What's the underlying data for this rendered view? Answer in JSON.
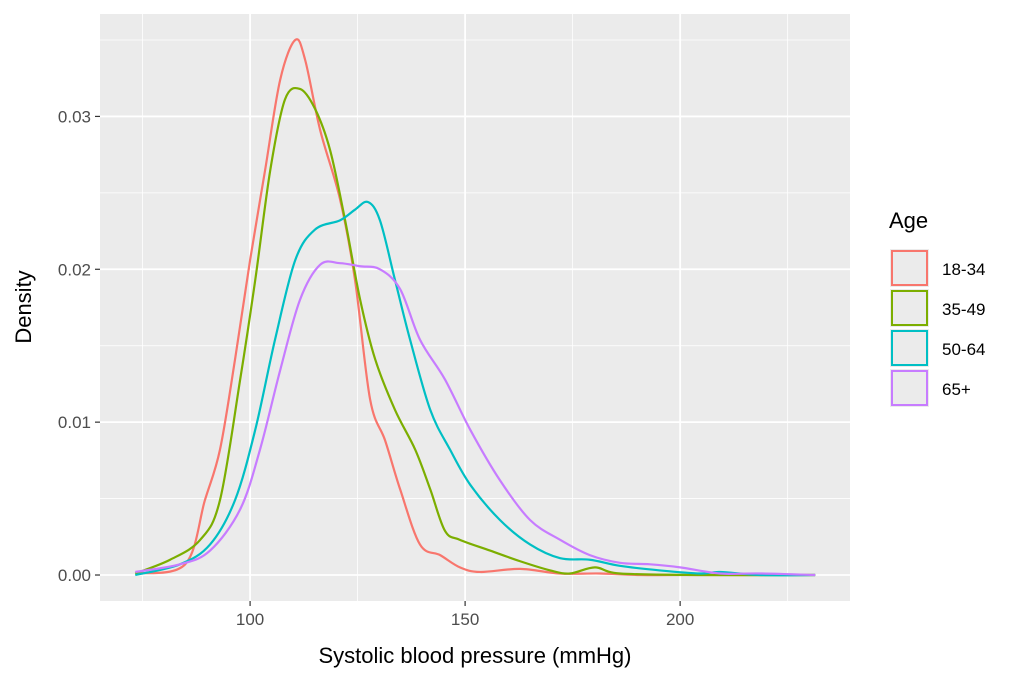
{
  "chart_data": {
    "type": "line",
    "title": "",
    "xlabel": "Systolic blood pressure (mmHg)",
    "ylabel": "Density",
    "xlim": [
      65.1,
      239.5
    ],
    "ylim": [
      -0.0017,
      0.0367
    ],
    "x_ticks": [
      100,
      150,
      200
    ],
    "x_tick_labels": [
      "100",
      "150",
      "200"
    ],
    "y_ticks": [
      0,
      0.01,
      0.02,
      0.03
    ],
    "y_tick_labels": [
      "0.00",
      "0.01",
      "0.02",
      "0.03"
    ],
    "grid": true,
    "legend": {
      "title": "Age",
      "placement": "right"
    },
    "series": [
      {
        "name": "18-34",
        "color": "#F8766D",
        "points": [
          [
            73.3,
            0.0001
          ],
          [
            84.9,
            0.0007
          ],
          [
            89.5,
            0.0049
          ],
          [
            93,
            0.0082
          ],
          [
            96.5,
            0.0141
          ],
          [
            100,
            0.0206
          ],
          [
            103.5,
            0.0265
          ],
          [
            107,
            0.0324
          ],
          [
            110.5,
            0.035
          ],
          [
            112.8,
            0.0337
          ],
          [
            116.3,
            0.0291
          ],
          [
            120.9,
            0.0246
          ],
          [
            124.4,
            0.0193
          ],
          [
            127.9,
            0.0115
          ],
          [
            131.4,
            0.0088
          ],
          [
            134.9,
            0.0056
          ],
          [
            139.5,
            0.002
          ],
          [
            144.2,
            0.0013
          ],
          [
            148.8,
            0.0005
          ],
          [
            153.5,
            0.0002
          ],
          [
            162.8,
            0.0004
          ],
          [
            172,
            0.0001
          ],
          [
            181.4,
            0.0001
          ],
          [
            190.7,
            0
          ],
          [
            204.7,
            0
          ],
          [
            231.4,
            0
          ]
        ]
      },
      {
        "name": "35-49",
        "color": "#7CAE00",
        "points": [
          [
            73.3,
            0.0001
          ],
          [
            81.4,
            0.001
          ],
          [
            88.4,
            0.0023
          ],
          [
            93,
            0.0049
          ],
          [
            97.7,
            0.0128
          ],
          [
            101.2,
            0.0193
          ],
          [
            104.7,
            0.0265
          ],
          [
            108.1,
            0.0311
          ],
          [
            111.6,
            0.0318
          ],
          [
            115.1,
            0.0305
          ],
          [
            118.6,
            0.0278
          ],
          [
            122.1,
            0.0232
          ],
          [
            125.6,
            0.018
          ],
          [
            129.1,
            0.0141
          ],
          [
            133.7,
            0.0108
          ],
          [
            138.4,
            0.0082
          ],
          [
            141.9,
            0.0056
          ],
          [
            145.3,
            0.0029
          ],
          [
            148.8,
            0.0023
          ],
          [
            155.8,
            0.0016
          ],
          [
            162.8,
            0.0009
          ],
          [
            169.8,
            0.0003
          ],
          [
            174.4,
            0.0001
          ],
          [
            180.2,
            0.0005
          ],
          [
            186,
            0.0001
          ],
          [
            204.7,
            0
          ],
          [
            231.4,
            0
          ]
        ]
      },
      {
        "name": "50-64",
        "color": "#00BFC4",
        "points": [
          [
            73.3,
            0
          ],
          [
            83.7,
            0.0007
          ],
          [
            90.7,
            0.002
          ],
          [
            96.5,
            0.0049
          ],
          [
            101.2,
            0.0095
          ],
          [
            105.8,
            0.0154
          ],
          [
            110.5,
            0.0206
          ],
          [
            115.1,
            0.0226
          ],
          [
            120.9,
            0.0232
          ],
          [
            124.4,
            0.0239
          ],
          [
            127.4,
            0.0244
          ],
          [
            130.2,
            0.0232
          ],
          [
            133.7,
            0.0193
          ],
          [
            137.2,
            0.0154
          ],
          [
            141.9,
            0.0108
          ],
          [
            146.5,
            0.0082
          ],
          [
            151.2,
            0.0059
          ],
          [
            158.1,
            0.0036
          ],
          [
            165.1,
            0.002
          ],
          [
            172.1,
            0.0011
          ],
          [
            179,
            0.001
          ],
          [
            186,
            0.0006
          ],
          [
            195.3,
            0.0003
          ],
          [
            204.7,
            0.0001
          ],
          [
            209.3,
            0.0002
          ],
          [
            218.6,
            0
          ],
          [
            231.4,
            0
          ]
        ]
      },
      {
        "name": "65+",
        "color": "#C77CFF",
        "points": [
          [
            73.3,
            0.0002
          ],
          [
            83.7,
            0.0007
          ],
          [
            90.7,
            0.0016
          ],
          [
            97.7,
            0.0043
          ],
          [
            102.3,
            0.0082
          ],
          [
            107,
            0.0134
          ],
          [
            111.6,
            0.018
          ],
          [
            116.3,
            0.0203
          ],
          [
            120.9,
            0.0204
          ],
          [
            125.6,
            0.0202
          ],
          [
            130.2,
            0.02
          ],
          [
            134.9,
            0.0187
          ],
          [
            139.5,
            0.0154
          ],
          [
            145.3,
            0.0128
          ],
          [
            151.2,
            0.0095
          ],
          [
            158.1,
            0.0062
          ],
          [
            165.1,
            0.0036
          ],
          [
            172.1,
            0.0023
          ],
          [
            179,
            0.0013
          ],
          [
            186,
            0.0008
          ],
          [
            193,
            0.0007
          ],
          [
            200,
            0.0005
          ],
          [
            209.3,
            0.0001
          ],
          [
            218.6,
            0.0001
          ],
          [
            231.4,
            0
          ]
        ]
      }
    ]
  }
}
